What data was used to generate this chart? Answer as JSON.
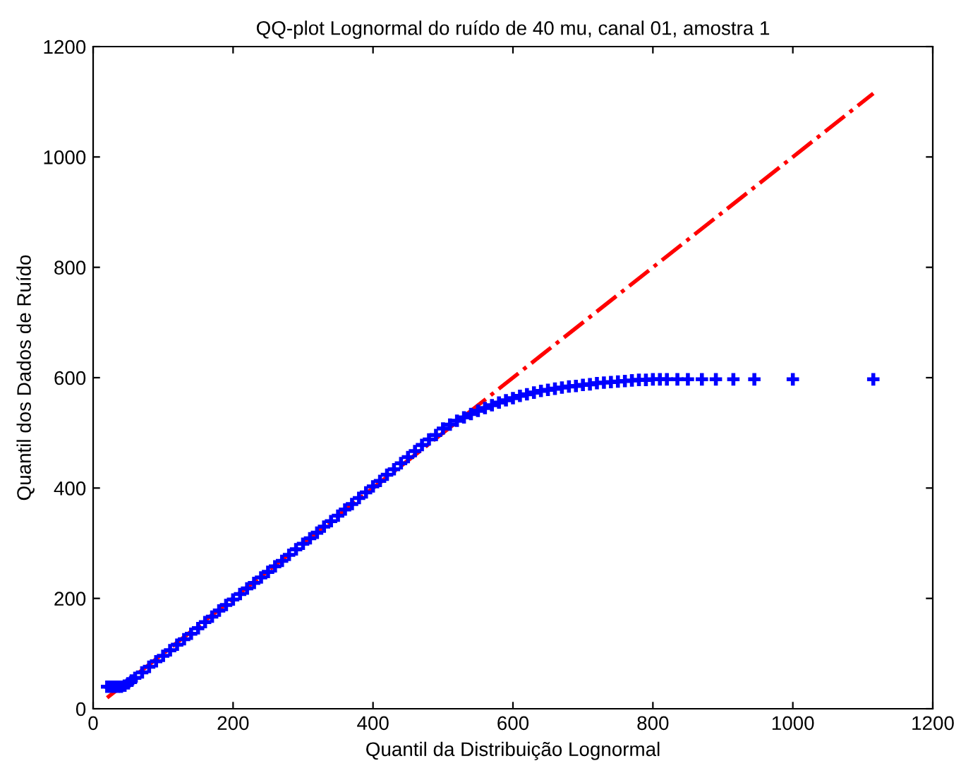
{
  "chart_data": {
    "type": "scatter",
    "title": "QQ-plot Lognormal do ruído de 40 mu, canal 01, amostra 1",
    "xlabel": "Quantil da Distribuição Lognormal",
    "ylabel": "Quantil dos Dados de Ruído",
    "xlim": [
      0,
      1200
    ],
    "ylim": [
      0,
      1200
    ],
    "xticks": [
      0,
      200,
      400,
      600,
      800,
      1000,
      1200
    ],
    "yticks": [
      0,
      200,
      400,
      600,
      800,
      1000,
      1200
    ],
    "grid": false,
    "legend": false,
    "series": [
      {
        "color": "#0000ff",
        "marker": "cross",
        "x": [
          20,
          25,
          30,
          35,
          40,
          45,
          50,
          55,
          60,
          70,
          80,
          90,
          100,
          110,
          120,
          130,
          140,
          150,
          160,
          170,
          180,
          190,
          200,
          210,
          220,
          230,
          240,
          250,
          260,
          270,
          280,
          290,
          300,
          310,
          320,
          330,
          340,
          350,
          360,
          370,
          380,
          390,
          400,
          410,
          420,
          430,
          440,
          450,
          460,
          470,
          480,
          490,
          500,
          510,
          520,
          530,
          540,
          550,
          560,
          570,
          580,
          590,
          600,
          610,
          620,
          630,
          640,
          650,
          660,
          670,
          680,
          690,
          700,
          710,
          720,
          730,
          740,
          750,
          760,
          770,
          780,
          790,
          800,
          810,
          820,
          835,
          850,
          870,
          890,
          915,
          945,
          1000,
          1115
        ],
        "values": [
          40,
          40,
          40,
          40,
          40,
          42,
          46,
          51,
          56,
          66,
          76,
          86,
          96,
          106,
          116,
          126,
          136,
          146,
          157,
          167,
          178,
          188,
          198,
          208,
          218,
          228,
          238,
          248,
          258,
          268,
          279,
          289,
          299,
          309,
          319,
          330,
          340,
          350,
          361,
          371,
          382,
          392,
          403,
          413,
          424,
          434,
          445,
          456,
          467,
          478,
          488,
          496,
          508,
          515,
          522,
          528,
          534,
          540,
          545,
          550,
          555,
          559,
          563,
          567,
          570,
          573,
          576,
          578,
          580,
          582,
          584,
          585,
          587,
          588,
          590,
          591,
          592,
          593,
          594,
          595,
          596,
          596,
          597,
          597,
          597,
          597,
          597,
          597,
          597,
          597,
          597,
          597,
          597
        ]
      },
      {
        "type": "line",
        "color": "#ff0000",
        "line_style": "dashdot",
        "x": [
          20,
          1115
        ],
        "values": [
          20,
          1115
        ]
      }
    ]
  }
}
